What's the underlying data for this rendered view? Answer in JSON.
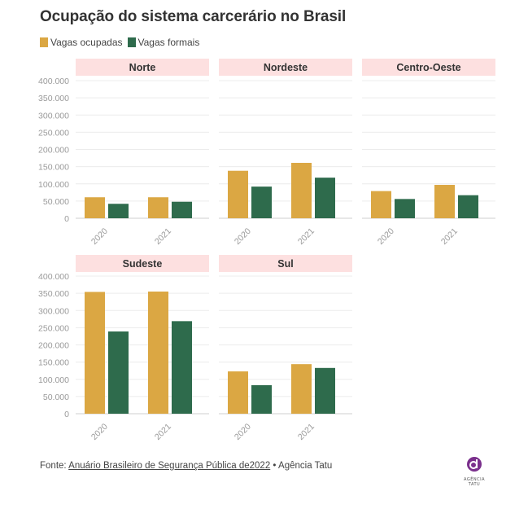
{
  "title": "Ocupação do sistema carcerário no Brasil",
  "legend": [
    {
      "label": "Vagas ocupadas",
      "color": "#dba743"
    },
    {
      "label": "Vagas formais",
      "color": "#2e6b4c"
    }
  ],
  "footer": {
    "prefix": "Fonte: ",
    "link_text": "Anuário Brasileiro de Segurança Pública de2022",
    "separator": " • ",
    "credit": "Agência Tatu"
  },
  "logo": {
    "name": "agencia-tatu-logo",
    "text": "AGÊNCIA TATU"
  },
  "chart_data": {
    "type": "bar",
    "layout": "small-multiples",
    "x": [
      "2020",
      "2021"
    ],
    "ylim": [
      0,
      400000
    ],
    "yticks": [
      "0",
      "50.000",
      "100.000",
      "150.000",
      "200.000",
      "250.000",
      "300.000",
      "350.000",
      "400.000"
    ],
    "series_names": [
      "Vagas ocupadas",
      "Vagas formais"
    ],
    "colors": [
      "#dba743",
      "#2e6b4c"
    ],
    "panel_header_color": "#fde0e0",
    "grid": true,
    "panels": [
      {
        "title": "Norte",
        "series": [
          {
            "name": "Vagas ocupadas",
            "values": [
              61000,
              61000
            ]
          },
          {
            "name": "Vagas formais",
            "values": [
              42000,
              48000
            ]
          }
        ]
      },
      {
        "title": "Nordeste",
        "series": [
          {
            "name": "Vagas ocupadas",
            "values": [
              138000,
              161000
            ]
          },
          {
            "name": "Vagas formais",
            "values": [
              92000,
              118000
            ]
          }
        ]
      },
      {
        "title": "Centro-Oeste",
        "series": [
          {
            "name": "Vagas ocupadas",
            "values": [
              79000,
              97000
            ]
          },
          {
            "name": "Vagas formais",
            "values": [
              56000,
              67000
            ]
          }
        ]
      },
      {
        "title": "Sudeste",
        "series": [
          {
            "name": "Vagas ocupadas",
            "values": [
              354000,
              355000
            ]
          },
          {
            "name": "Vagas formais",
            "values": [
              239000,
              269000
            ]
          }
        ]
      },
      {
        "title": "Sul",
        "series": [
          {
            "name": "Vagas ocupadas",
            "values": [
              123000,
              144000
            ]
          },
          {
            "name": "Vagas formais",
            "values": [
              83000,
              133000
            ]
          }
        ]
      }
    ]
  }
}
